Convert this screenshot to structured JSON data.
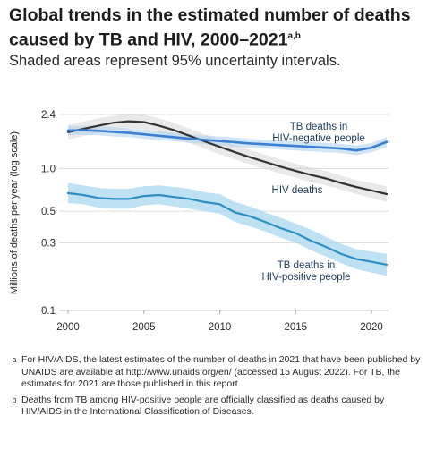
{
  "title": "Global trends in the estimated number of deaths caused by TB and HIV, 2000–2021",
  "title_footnote_marks": "a,b",
  "subtitle": "Shaded areas represent 95% uncertainty intervals.",
  "footnotes": [
    {
      "mark": "a",
      "text": "For HIV/AIDS, the latest estimates of the number of deaths in 2021 that have been published by UNAIDS are available at http://www.unaids.org/en/ (accessed 15 August 2022). For TB, the estimates for 2021 are those published in this report."
    },
    {
      "mark": "b",
      "text": "Deaths from TB among HIV-positive people are officially classified as deaths caused by HIV/AIDS in the International Classification of Diseases."
    }
  ],
  "chart_data": {
    "type": "area",
    "ylabel": "Millions of deaths per year (log scale)",
    "xlabel": "",
    "y_scale": "log",
    "ylim": [
      0.1,
      2.4
    ],
    "yticks": [
      0.1,
      0.3,
      0.5,
      1.0,
      2.4
    ],
    "ytick_labels": [
      "0.1",
      "0.3",
      "0.5",
      "1.0",
      "2.4"
    ],
    "xlim": [
      2000,
      2021
    ],
    "xticks": [
      2000,
      2005,
      2010,
      2015,
      2020
    ],
    "grid": true,
    "x": [
      2000,
      2001,
      2002,
      2003,
      2004,
      2005,
      2006,
      2007,
      2008,
      2009,
      2010,
      2011,
      2012,
      2013,
      2014,
      2015,
      2016,
      2017,
      2018,
      2019,
      2020,
      2021
    ],
    "series": [
      {
        "name": "TB deaths in HIV-negative people",
        "color": "#3b7fd1",
        "values": [
          1.85,
          1.86,
          1.84,
          1.81,
          1.78,
          1.74,
          1.7,
          1.66,
          1.62,
          1.59,
          1.56,
          1.53,
          1.5,
          1.48,
          1.46,
          1.44,
          1.42,
          1.4,
          1.38,
          1.34,
          1.4,
          1.54
        ],
        "lower": [
          1.72,
          1.73,
          1.71,
          1.68,
          1.66,
          1.62,
          1.58,
          1.55,
          1.51,
          1.48,
          1.45,
          1.42,
          1.4,
          1.38,
          1.36,
          1.34,
          1.32,
          1.3,
          1.28,
          1.24,
          1.3,
          1.42
        ],
        "upper": [
          1.99,
          2.0,
          1.98,
          1.95,
          1.91,
          1.87,
          1.83,
          1.78,
          1.74,
          1.71,
          1.68,
          1.65,
          1.62,
          1.59,
          1.57,
          1.55,
          1.53,
          1.51,
          1.49,
          1.45,
          1.51,
          1.67
        ]
      },
      {
        "name": "HIV deaths",
        "color": "#333333",
        "values": [
          1.8,
          1.9,
          2.0,
          2.1,
          2.15,
          2.12,
          2.0,
          1.86,
          1.7,
          1.55,
          1.42,
          1.3,
          1.2,
          1.11,
          1.03,
          0.96,
          0.9,
          0.85,
          0.79,
          0.74,
          0.7,
          0.66
        ],
        "lower": [
          1.6,
          1.69,
          1.78,
          1.87,
          1.91,
          1.88,
          1.78,
          1.65,
          1.51,
          1.38,
          1.26,
          1.16,
          1.07,
          0.99,
          0.92,
          0.86,
          0.8,
          0.76,
          0.71,
          0.66,
          0.62,
          0.58
        ],
        "upper": [
          2.03,
          2.14,
          2.25,
          2.36,
          2.42,
          2.39,
          2.25,
          2.09,
          1.91,
          1.74,
          1.6,
          1.46,
          1.35,
          1.25,
          1.16,
          1.08,
          1.01,
          0.96,
          0.89,
          0.83,
          0.79,
          0.75
        ]
      },
      {
        "name": "TB deaths in HIV-positive people",
        "color": "#2b8fc4",
        "values": [
          0.67,
          0.65,
          0.62,
          0.61,
          0.61,
          0.64,
          0.65,
          0.63,
          0.61,
          0.58,
          0.56,
          0.49,
          0.46,
          0.42,
          0.38,
          0.35,
          0.31,
          0.28,
          0.25,
          0.23,
          0.22,
          0.21
        ],
        "lower": [
          0.57,
          0.56,
          0.53,
          0.52,
          0.52,
          0.55,
          0.56,
          0.54,
          0.52,
          0.5,
          0.48,
          0.42,
          0.39,
          0.36,
          0.325,
          0.3,
          0.265,
          0.24,
          0.215,
          0.195,
          0.185,
          0.175
        ],
        "upper": [
          0.79,
          0.76,
          0.73,
          0.72,
          0.72,
          0.75,
          0.76,
          0.74,
          0.72,
          0.68,
          0.66,
          0.58,
          0.54,
          0.49,
          0.45,
          0.41,
          0.37,
          0.33,
          0.295,
          0.27,
          0.26,
          0.25
        ]
      }
    ],
    "annotations": [
      {
        "series": 0,
        "lines": [
          "TB deaths in",
          "HIV-negative people"
        ]
      },
      {
        "series": 1,
        "lines": [
          "HIV deaths"
        ]
      },
      {
        "series": 2,
        "lines": [
          "TB deaths in",
          "HIV-positive people"
        ]
      }
    ]
  }
}
